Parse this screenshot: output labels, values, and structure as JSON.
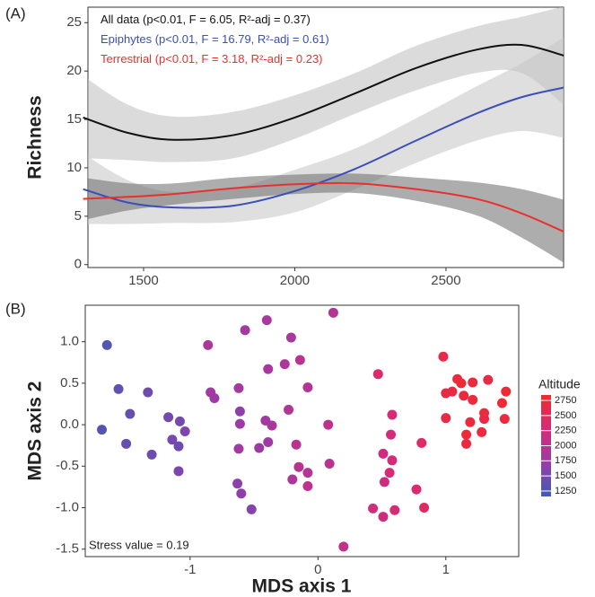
{
  "chart_data": [
    {
      "type": "smooth",
      "panel": "(A)",
      "ylabel": "Richness",
      "x": [
        1300,
        1450,
        1600,
        1800,
        2000,
        2200,
        2400,
        2600,
        2750,
        2890
      ],
      "xlim": [
        1316,
        2889
      ],
      "xticks": [
        1500,
        2000,
        2500
      ],
      "ylim": [
        -0.3,
        26.6
      ],
      "yticks": [
        0,
        5,
        10,
        15,
        20,
        25
      ],
      "series": [
        {
          "name": "All data",
          "stats": "(p<0.01, F = 6.05, R²-adj = 0.37)",
          "color": "#111111",
          "band_color": "#bdbdbd",
          "values": [
            15.2,
            13.6,
            12.9,
            13.4,
            15.2,
            17.7,
            20.3,
            22.2,
            22.7,
            21.6
          ],
          "lower": [
            11,
            10.8,
            10.6,
            11,
            13,
            15.6,
            18,
            19.8,
            19.8,
            16.5
          ],
          "upper": [
            19.5,
            16.5,
            15.3,
            15.8,
            17.5,
            19.8,
            22.6,
            24.6,
            25.6,
            26.7
          ]
        },
        {
          "name": "Epiphytes",
          "stats": "(p<0.01, F = 16.79, R²-adj = 0.61)",
          "color": "#3a4fb8",
          "band_color": "#c4c4c4",
          "values": [
            7.8,
            6.4,
            5.9,
            6.1,
            7.6,
            9.9,
            12.8,
            15.6,
            17.3,
            18.3
          ],
          "lower": [
            4.2,
            4.2,
            4.3,
            4.4,
            5.4,
            7.8,
            10.5,
            12.8,
            13.8,
            13.1
          ],
          "upper": [
            11.5,
            8.7,
            7.5,
            7.9,
            9.8,
            12,
            15.1,
            18.4,
            20.8,
            23.5
          ]
        },
        {
          "name": "Terrestrial",
          "stats": "(p<0.01, F = 3.18, R²-adj = 0.23)",
          "color": "#e8312f",
          "band_color": "#6a6a6a",
          "values": [
            6.8,
            7.0,
            7.3,
            7.9,
            8.3,
            8.4,
            7.8,
            6.8,
            5.3,
            3.4
          ],
          "lower": [
            4.6,
            5.6,
            6.2,
            6.8,
            7.3,
            7.4,
            6.6,
            5.1,
            2.8,
            0.2
          ],
          "upper": [
            9,
            8.4,
            8.4,
            9,
            9.3,
            9.4,
            9,
            8.5,
            7.8,
            6.7
          ]
        }
      ]
    },
    {
      "type": "scatter",
      "panel": "(B)",
      "xlabel": "MDS axis 1",
      "ylabel": "MDS axis 2",
      "annotation": "Stress value = 0.19",
      "xlim": [
        -1.82,
        1.57
      ],
      "xticks": [
        -1,
        0,
        1
      ],
      "ylim": [
        -1.59,
        1.44
      ],
      "yticks": [
        {
          "value": -1.5,
          "label": "-1.5"
        },
        {
          "value": -1,
          "label": "-1.0"
        },
        {
          "value": -0.5,
          "label": "-0.5"
        },
        {
          "value": 0,
          "label": "0.0"
        },
        {
          "value": 0.5,
          "label": "0.5"
        },
        {
          "value": 1,
          "label": "1.0"
        }
      ],
      "x": [
        -1.65,
        -1.56,
        -1.47,
        -1.33,
        -1.69,
        -1.5,
        -1.3,
        -1.17,
        -1.08,
        -1.04,
        -1.14,
        -1.09,
        -1.09,
        -0.86,
        -0.84,
        -0.81,
        -0.62,
        -0.57,
        -0.4,
        -0.21,
        -0.26,
        -0.39,
        -0.14,
        -0.08,
        -0.61,
        -0.61,
        -0.62,
        -0.46,
        -0.41,
        -0.36,
        -0.39,
        -0.63,
        -0.6,
        -0.52,
        -0.23,
        -0.17,
        -0.15,
        -0.2,
        -0.08,
        -0.08,
        0.08,
        0.09,
        0.12,
        0.2,
        0.47,
        0.58,
        0.57,
        0.51,
        0.58,
        0.56,
        0.52,
        0.43,
        0.51,
        0.6,
        0.77,
        0.81,
        0.83,
        0.98,
        1.09,
        1.05,
        1.14,
        1.12,
        1.21,
        1.33,
        1.47,
        1.44,
        1.3,
        1.46,
        1.3,
        1.19,
        1.28,
        1.16,
        1.16,
        1,
        1,
        1.21
      ],
      "y": [
        0.96,
        0.43,
        0.13,
        0.39,
        -0.06,
        -0.23,
        -0.36,
        0.09,
        0.04,
        -0.08,
        -0.18,
        -0.26,
        -0.56,
        0.96,
        0.39,
        0.32,
        0.44,
        1.14,
        1.26,
        1.05,
        0.73,
        0.67,
        0.78,
        0.45,
        0.16,
        0.01,
        -0.29,
        -0.28,
        0.05,
        -0.01,
        -0.21,
        -0.71,
        -0.83,
        -1.02,
        0.18,
        -0.24,
        -0.51,
        -0.66,
        -0.58,
        -0.74,
        0,
        -0.47,
        1.35,
        -1.47,
        0.61,
        0.12,
        -0.12,
        -0.35,
        -0.43,
        -0.58,
        -0.69,
        -1.01,
        -1.11,
        -1.03,
        -0.78,
        -0.22,
        -1,
        0.82,
        0.55,
        0.4,
        0.35,
        0.5,
        0.51,
        0.54,
        0.4,
        0.26,
        0.14,
        0.07,
        0.07,
        0.03,
        -0.09,
        -0.12,
        -0.23,
        0.08,
        0.38,
        0.3
      ],
      "color_values": [
        1300,
        1350,
        1400,
        1450,
        1300,
        1400,
        1450,
        1500,
        1500,
        1550,
        1500,
        1450,
        1550,
        1900,
        1800,
        1750,
        1800,
        1800,
        1850,
        1850,
        1900,
        1850,
        2000,
        1950,
        1650,
        1750,
        1800,
        1750,
        1800,
        1850,
        1750,
        1650,
        1650,
        1600,
        1950,
        2000,
        2000,
        1900,
        1950,
        2050,
        2050,
        2000,
        1950,
        2100,
        2350,
        2300,
        2250,
        2200,
        2250,
        2300,
        2200,
        2250,
        2200,
        2300,
        2350,
        2400,
        2450,
        2600,
        2700,
        2650,
        2700,
        2750,
        2700,
        2650,
        2750,
        2750,
        2700,
        2700,
        2650,
        2700,
        2700,
        2750,
        2650,
        2650,
        2650,
        2700
      ],
      "colorbar": {
        "title": "Altitude",
        "lim": [
          1160,
          2840
        ],
        "ticks": [
          1250,
          1500,
          1750,
          2000,
          2250,
          2500,
          2750
        ],
        "colors": [
          "#3d5db4",
          "#9a3ca8",
          "#d62b78",
          "#f32a2a"
        ]
      }
    }
  ]
}
